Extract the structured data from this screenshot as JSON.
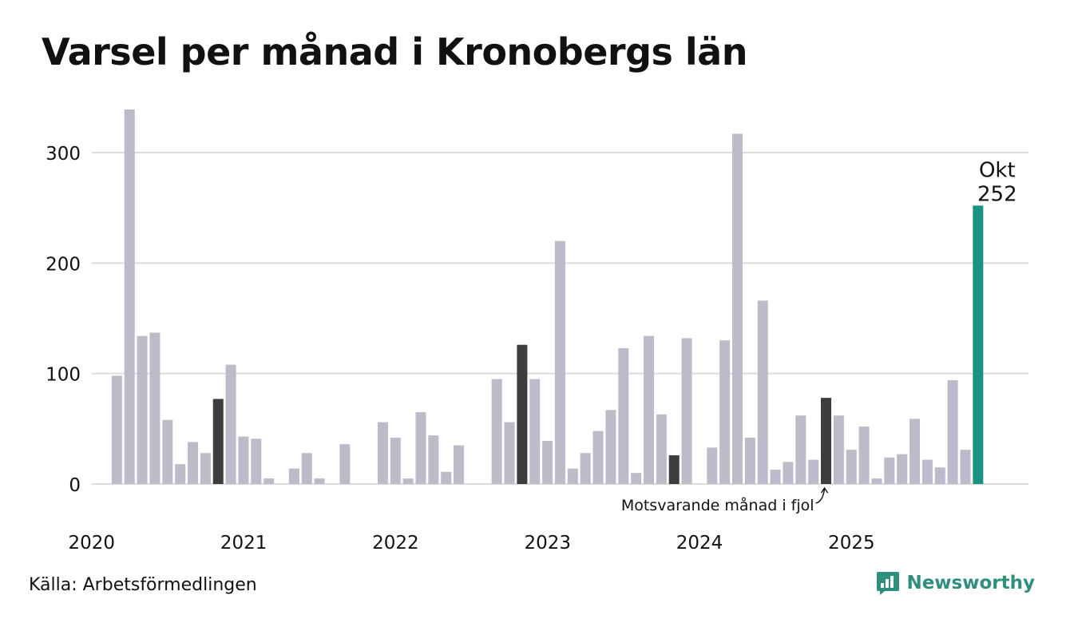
{
  "title": "Varsel per månad i Kronobergs län",
  "source": "Källa: Arbetsförmedlingen",
  "brand": {
    "name": "Newsworthy",
    "icon": "newsworthy-logo-icon"
  },
  "colors": {
    "default": "#bdbaca",
    "previous_year": "#3d3d3d",
    "highlight": "#1a9383",
    "grid": "#dcdcdc"
  },
  "chart_data": {
    "type": "bar",
    "title": "Varsel per månad i Kronobergs län",
    "xlabel": "",
    "ylabel": "",
    "ylim": [
      0,
      345
    ],
    "yticks": [
      0,
      100,
      200,
      300
    ],
    "xtick_labels": [
      {
        "label": "2020",
        "index": 0
      },
      {
        "label": "2021",
        "index": 12
      },
      {
        "label": "2022",
        "index": 24
      },
      {
        "label": "2023",
        "index": 36
      },
      {
        "label": "2024",
        "index": 48
      },
      {
        "label": "2025",
        "index": 60
      }
    ],
    "values": [
      null,
      98,
      339,
      134,
      137,
      58,
      18,
      38,
      28,
      77,
      108,
      43,
      41,
      5,
      null,
      14,
      28,
      5,
      null,
      36,
      null,
      null,
      56,
      42,
      5,
      65,
      44,
      11,
      35,
      null,
      null,
      95,
      56,
      126,
      95,
      39,
      220,
      14,
      28,
      48,
      67,
      123,
      10,
      134,
      63,
      26,
      132,
      null,
      33,
      130,
      317,
      42,
      166,
      13,
      20,
      62,
      22,
      78,
      62,
      31,
      52,
      5,
      24,
      27,
      59,
      22,
      15,
      94,
      31,
      252
    ],
    "previous_year_indices": [
      9,
      33,
      45,
      57
    ],
    "highlight_index": 69,
    "highlight_label": {
      "month": "Okt",
      "value": "252"
    },
    "annotation": {
      "text": "Motsvarande månad i fjol",
      "index": 57
    }
  }
}
